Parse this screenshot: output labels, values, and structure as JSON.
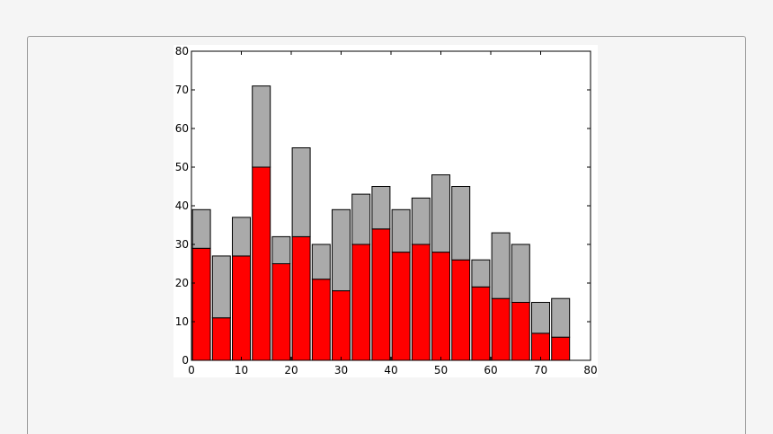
{
  "chart_data": {
    "type": "bar",
    "stacked": true,
    "x": [
      2,
      6,
      10,
      14,
      18,
      22,
      26,
      30,
      34,
      38,
      42,
      46,
      50,
      54,
      58,
      62,
      66,
      70,
      74
    ],
    "series": [
      {
        "color": "#ff0000",
        "values": [
          29,
          11,
          27,
          50,
          25,
          32,
          21,
          18,
          30,
          34,
          28,
          30,
          28,
          26,
          19,
          16,
          15,
          7,
          6
        ]
      },
      {
        "color": "#aaaaaa",
        "values": [
          10,
          16,
          10,
          21,
          7,
          23,
          9,
          21,
          13,
          11,
          11,
          12,
          20,
          19,
          7,
          17,
          15,
          8,
          10
        ]
      }
    ],
    "bar_width": 3.6,
    "xlim": [
      0,
      80
    ],
    "ylim": [
      0,
      80
    ],
    "xticks": [
      "0",
      "10",
      "20",
      "30",
      "40",
      "50",
      "60",
      "70",
      "80"
    ],
    "yticks": [
      "0",
      "10",
      "20",
      "30",
      "40",
      "50",
      "60",
      "70",
      "80"
    ],
    "grid": false,
    "title": "",
    "xlabel": "",
    "ylabel": ""
  }
}
